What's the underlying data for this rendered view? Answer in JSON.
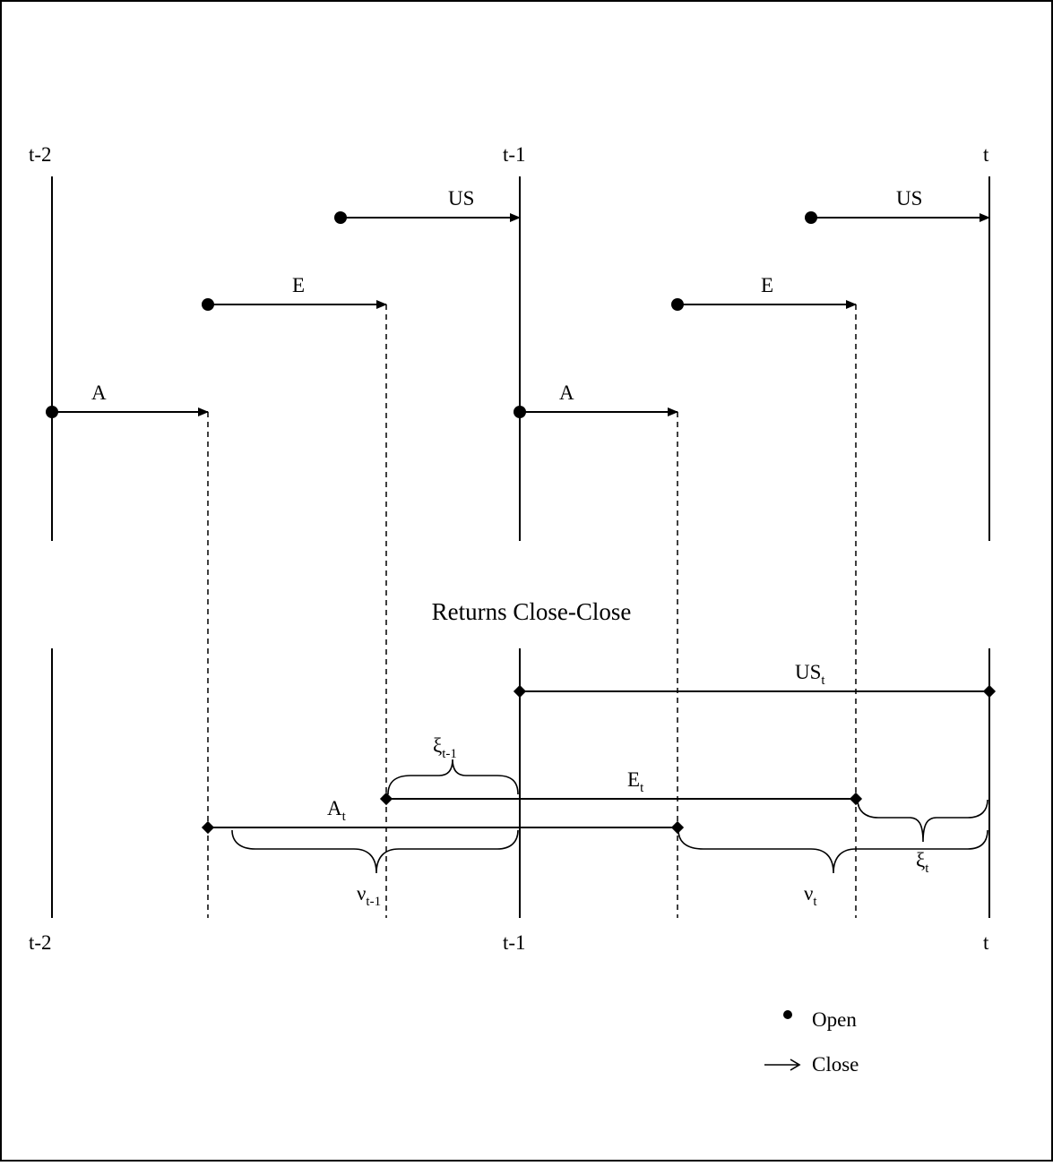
{
  "top_panel": {
    "time_labels": {
      "t_minus_2": "t-2",
      "t_minus_1": "t-1",
      "t": "t"
    },
    "markets": {
      "us_1": "US",
      "us_2": "US",
      "e_1": "E",
      "e_2": "E",
      "a_1": "A",
      "a_2": "A"
    }
  },
  "section_title": "Returns Close-Close",
  "bottom_panel": {
    "returns": {
      "us_t": {
        "base": "US",
        "sub": "t"
      },
      "e_t": {
        "base": "E",
        "sub": "t"
      },
      "a_t": {
        "base": "A",
        "sub": "t"
      }
    },
    "gaps": {
      "xi_t_minus_1": {
        "base": "ξ",
        "sub": "t-1"
      },
      "xi_t": {
        "base": "ξ",
        "sub": "t"
      },
      "nu_t_minus_1": {
        "base": "ν",
        "sub": "t-1"
      },
      "nu_t": {
        "base": "ν",
        "sub": "t"
      }
    },
    "time_labels": {
      "t_minus_2": "t-2",
      "t_minus_1": "t-1",
      "t": "t"
    }
  },
  "legend": {
    "open_label": "Open",
    "close_label": "Close"
  }
}
